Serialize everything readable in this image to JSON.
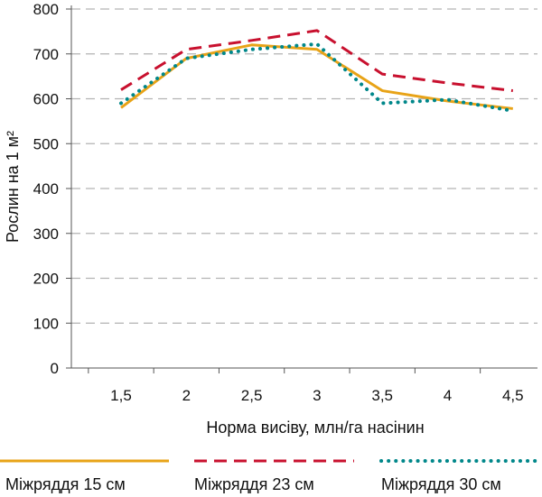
{
  "chart_data": {
    "type": "line",
    "title": "",
    "xlabel": "Норма висіву, млн/га насінин",
    "ylabel": "Рослин на 1 м²",
    "categories": [
      "1,5",
      "2",
      "2,5",
      "3",
      "3,5",
      "4",
      "4,5"
    ],
    "ylim": [
      0,
      800
    ],
    "yticks": [
      0,
      100,
      200,
      300,
      400,
      500,
      600,
      700,
      800
    ],
    "ytick_labels": [
      "0",
      "100",
      "200",
      "300",
      "400",
      "500",
      "600",
      "700",
      "800"
    ],
    "grid": true,
    "legend_position": "bottom",
    "series": [
      {
        "name": "Міжряддя 15 см",
        "values": [
          580,
          690,
          720,
          710,
          618,
          595,
          578
        ],
        "color": "#E8A317",
        "style": "solid"
      },
      {
        "name": "Міжряддя 23 см",
        "values": [
          620,
          710,
          730,
          752,
          655,
          635,
          618
        ],
        "color": "#C8102E",
        "style": "dashed"
      },
      {
        "name": "Міжряддя 30 см",
        "values": [
          590,
          690,
          710,
          722,
          590,
          598,
          573
        ],
        "color": "#00878A",
        "style": "dotted"
      }
    ]
  }
}
